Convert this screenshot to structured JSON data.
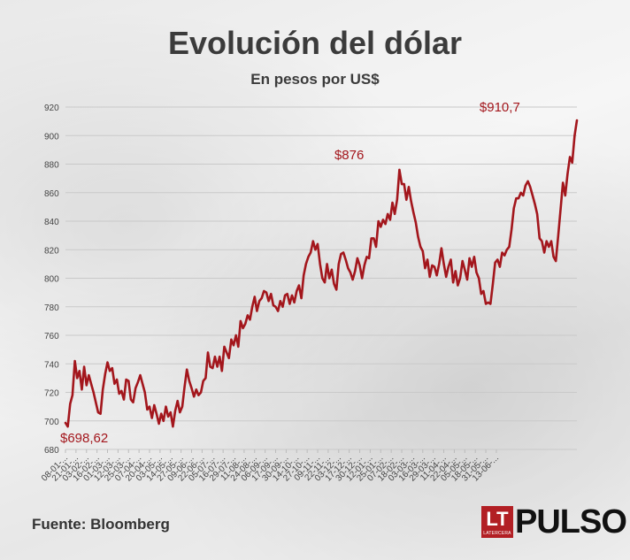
{
  "header": {
    "title": "Evolución del dólar",
    "subtitle": "En pesos por US$"
  },
  "footer": {
    "source": "Fuente: Bloomberg",
    "logo_box_text": "LT",
    "logo_box_subtext": "LATERCERA",
    "logo_brand": "PULSO"
  },
  "colors": {
    "line": "#a3161c",
    "annotation": "#a3161c",
    "logo_box": "#b21f24"
  },
  "chart_data": {
    "type": "line",
    "title": "Evolución del dólar",
    "subtitle": "En pesos por US$",
    "ylim": [
      680,
      920
    ],
    "yticks": [
      680,
      700,
      720,
      740,
      760,
      780,
      800,
      820,
      840,
      860,
      880,
      900,
      920
    ],
    "grid": true,
    "x_tick_labels": [
      "08-01-...",
      "21-01-...",
      "03-02-...",
      "16-02-...",
      "01-03-...",
      "12-03-...",
      "25-03-...",
      "07-04-...",
      "20-04-...",
      "03-05-...",
      "14-05-...",
      "27-05-...",
      "09-06-...",
      "22-06-...",
      "05-07-...",
      "16-07-...",
      "29-07-...",
      "11-08-...",
      "24-08-...",
      "06-09-...",
      "17-09-...",
      "30-09-...",
      "14-10-...",
      "27-10-...",
      "09-11-...",
      "22-11-...",
      "03-12-...",
      "17-12-...",
      "30-12-...",
      "12-01-...",
      "25-01-...",
      "07-02-...",
      "18-02-...",
      "03-03-...",
      "16-03-...",
      "29-03-...",
      "11-04-...",
      "22-04-...",
      "05-05-...",
      "18-05-...",
      "31-05-...",
      "13-06-..."
    ],
    "x_tick_values": [
      0,
      9,
      18,
      27,
      36,
      45,
      54,
      63,
      72,
      81,
      90,
      99,
      108,
      117,
      126,
      135,
      144,
      153,
      162,
      171,
      180,
      189,
      198,
      207,
      216,
      225,
      234,
      243,
      252,
      261,
      270,
      279,
      288,
      297,
      306,
      315,
      324,
      333,
      342,
      351,
      360,
      369
    ],
    "annotations": [
      {
        "text": "$698,62",
        "x": 0,
        "y": 698.62
      },
      {
        "text": "$876",
        "x": 243,
        "y": 876
      },
      {
        "text": "$910,7",
        "x": 375,
        "y": 910.7
      }
    ],
    "series": [
      {
        "points": [
          [
            0,
            698.62
          ],
          [
            2,
            696
          ],
          [
            4,
            712
          ],
          [
            6,
            718
          ],
          [
            8,
            742
          ],
          [
            10,
            730
          ],
          [
            12,
            735
          ],
          [
            14,
            722
          ],
          [
            16,
            738
          ],
          [
            18,
            725
          ],
          [
            20,
            732
          ],
          [
            22,
            726
          ],
          [
            24,
            720
          ],
          [
            26,
            713
          ],
          [
            28,
            706
          ],
          [
            30,
            705
          ],
          [
            32,
            722
          ],
          [
            34,
            733
          ],
          [
            36,
            741
          ],
          [
            38,
            735
          ],
          [
            40,
            737
          ],
          [
            42,
            726
          ],
          [
            44,
            729
          ],
          [
            46,
            719
          ],
          [
            48,
            721
          ],
          [
            50,
            715
          ],
          [
            52,
            729
          ],
          [
            54,
            728
          ],
          [
            56,
            715
          ],
          [
            58,
            713
          ],
          [
            60,
            723
          ],
          [
            62,
            727
          ],
          [
            64,
            732
          ],
          [
            66,
            726
          ],
          [
            68,
            720
          ],
          [
            70,
            708
          ],
          [
            72,
            710
          ],
          [
            74,
            702
          ],
          [
            76,
            711
          ],
          [
            78,
            705
          ],
          [
            80,
            698
          ],
          [
            82,
            705
          ],
          [
            84,
            700
          ],
          [
            86,
            710
          ],
          [
            88,
            703
          ],
          [
            90,
            706
          ],
          [
            92,
            696
          ],
          [
            94,
            707
          ],
          [
            96,
            714
          ],
          [
            98,
            706
          ],
          [
            100,
            710
          ],
          [
            102,
            724
          ],
          [
            104,
            736
          ],
          [
            106,
            728
          ],
          [
            108,
            723
          ],
          [
            110,
            717
          ],
          [
            112,
            722
          ],
          [
            114,
            718
          ],
          [
            116,
            720
          ],
          [
            118,
            728
          ],
          [
            120,
            730
          ],
          [
            122,
            748
          ],
          [
            124,
            738
          ],
          [
            126,
            737
          ],
          [
            128,
            745
          ],
          [
            130,
            738
          ],
          [
            132,
            745
          ],
          [
            134,
            735
          ],
          [
            136,
            752
          ],
          [
            138,
            748
          ],
          [
            140,
            744
          ],
          [
            142,
            757
          ],
          [
            144,
            753
          ],
          [
            146,
            760
          ],
          [
            148,
            752
          ],
          [
            150,
            770
          ],
          [
            152,
            765
          ],
          [
            154,
            768
          ],
          [
            156,
            774
          ],
          [
            158,
            771
          ],
          [
            160,
            780
          ],
          [
            162,
            787
          ],
          [
            164,
            777
          ],
          [
            166,
            784
          ],
          [
            168,
            786
          ],
          [
            170,
            791
          ],
          [
            172,
            790
          ],
          [
            174,
            784
          ],
          [
            176,
            789
          ],
          [
            178,
            781
          ],
          [
            180,
            780
          ],
          [
            182,
            777
          ],
          [
            184,
            784
          ],
          [
            186,
            780
          ],
          [
            188,
            788
          ],
          [
            190,
            789
          ],
          [
            192,
            782
          ],
          [
            194,
            788
          ],
          [
            196,
            783
          ],
          [
            198,
            791
          ],
          [
            200,
            795
          ],
          [
            202,
            786
          ],
          [
            204,
            802
          ],
          [
            206,
            810
          ],
          [
            208,
            815
          ],
          [
            210,
            818
          ],
          [
            212,
            826
          ],
          [
            214,
            820
          ],
          [
            216,
            824
          ],
          [
            218,
            810
          ],
          [
            220,
            800
          ],
          [
            222,
            797
          ],
          [
            224,
            810
          ],
          [
            226,
            800
          ],
          [
            228,
            806
          ],
          [
            230,
            796
          ],
          [
            232,
            792
          ],
          [
            234,
            810
          ],
          [
            236,
            817
          ],
          [
            238,
            818
          ],
          [
            240,
            813
          ],
          [
            242,
            807
          ],
          [
            244,
            804
          ],
          [
            246,
            799
          ],
          [
            248,
            805
          ],
          [
            250,
            814
          ],
          [
            252,
            809
          ],
          [
            254,
            800
          ],
          [
            256,
            809
          ],
          [
            258,
            815
          ],
          [
            260,
            814
          ],
          [
            262,
            828
          ],
          [
            264,
            828
          ],
          [
            266,
            822
          ],
          [
            268,
            840
          ],
          [
            270,
            836
          ],
          [
            272,
            841
          ],
          [
            274,
            838
          ],
          [
            276,
            845
          ],
          [
            278,
            841
          ],
          [
            280,
            853
          ],
          [
            282,
            845
          ],
          [
            284,
            855
          ],
          [
            286,
            876
          ],
          [
            288,
            866
          ],
          [
            290,
            866
          ],
          [
            292,
            855
          ],
          [
            294,
            864
          ],
          [
            296,
            854
          ],
          [
            298,
            846
          ],
          [
            300,
            839
          ],
          [
            302,
            829
          ],
          [
            304,
            822
          ],
          [
            306,
            819
          ],
          [
            308,
            807
          ],
          [
            310,
            813
          ],
          [
            312,
            801
          ],
          [
            314,
            809
          ],
          [
            316,
            808
          ],
          [
            318,
            802
          ],
          [
            320,
            810
          ],
          [
            322,
            821
          ],
          [
            324,
            810
          ],
          [
            326,
            801
          ],
          [
            328,
            808
          ],
          [
            330,
            813
          ],
          [
            332,
            797
          ],
          [
            334,
            805
          ],
          [
            336,
            795
          ],
          [
            338,
            800
          ],
          [
            340,
            812
          ],
          [
            342,
            806
          ],
          [
            344,
            799
          ],
          [
            346,
            814
          ],
          [
            348,
            808
          ],
          [
            350,
            815
          ],
          [
            352,
            804
          ],
          [
            354,
            800
          ],
          [
            356,
            789
          ],
          [
            358,
            791
          ],
          [
            360,
            782
          ],
          [
            362,
            783
          ],
          [
            364,
            782
          ],
          [
            366,
            796
          ],
          [
            368,
            811
          ],
          [
            370,
            813
          ],
          [
            372,
            808
          ],
          [
            374,
            818
          ],
          [
            376,
            816
          ],
          [
            378,
            820
          ],
          [
            380,
            822
          ],
          [
            382,
            834
          ],
          [
            384,
            849
          ],
          [
            386,
            856
          ],
          [
            388,
            856
          ],
          [
            390,
            860
          ],
          [
            392,
            858
          ],
          [
            394,
            865
          ],
          [
            396,
            868
          ],
          [
            398,
            864
          ],
          [
            400,
            858
          ],
          [
            402,
            852
          ],
          [
            404,
            845
          ],
          [
            406,
            828
          ],
          [
            408,
            826
          ],
          [
            410,
            818
          ],
          [
            412,
            826
          ],
          [
            414,
            822
          ],
          [
            416,
            826
          ],
          [
            418,
            815
          ],
          [
            420,
            812
          ],
          [
            422,
            830
          ],
          [
            424,
            848
          ],
          [
            426,
            867
          ],
          [
            428,
            858
          ],
          [
            430,
            873
          ],
          [
            432,
            885
          ],
          [
            434,
            881
          ],
          [
            436,
            900
          ],
          [
            438,
            910.7
          ]
        ]
      }
    ]
  }
}
